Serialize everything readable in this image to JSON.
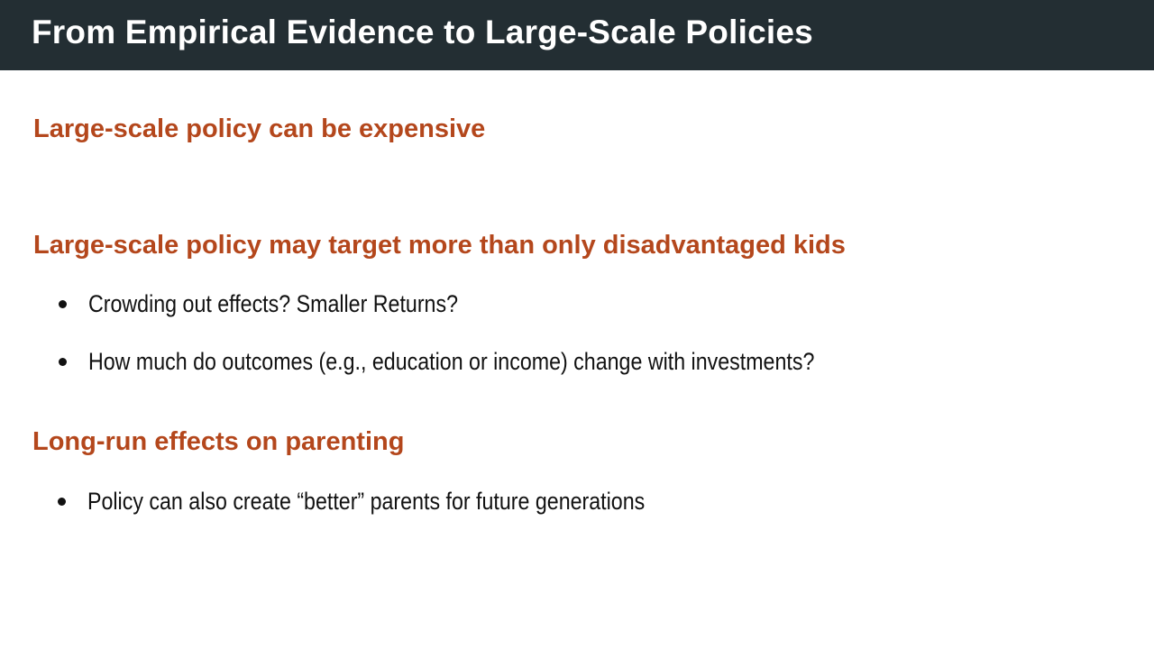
{
  "slide": {
    "title": "From Empirical Evidence to Large-Scale Policies",
    "colors": {
      "title_bar": "#232e33",
      "title_text": "#ffffff",
      "heading": "#b4471c",
      "body_text": "#111111"
    },
    "sections": [
      {
        "heading": "Large-scale policy can be expensive",
        "bullets": []
      },
      {
        "heading": "Large-scale policy may target more than only disadvantaged kids",
        "bullets": [
          "Crowding out effects? Smaller Returns?",
          "How much do outcomes (e.g., education or income) change with investments?"
        ]
      },
      {
        "heading": "Long-run effects on parenting",
        "bullets": [
          "Policy can also create “better” parents for future generations"
        ]
      }
    ]
  }
}
